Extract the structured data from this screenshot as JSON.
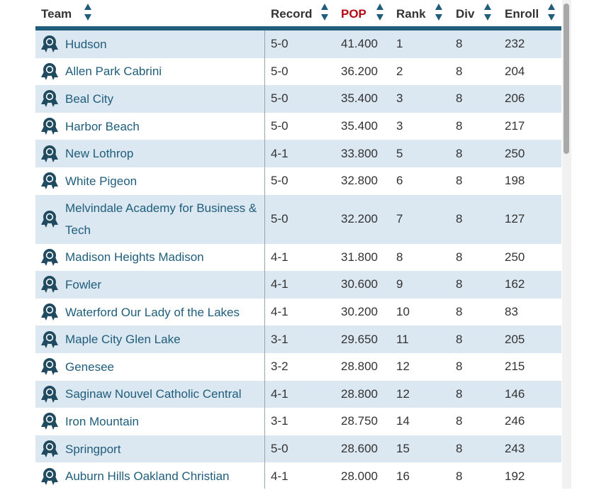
{
  "table": {
    "headers": [
      {
        "key": "team",
        "label": "Team",
        "active": false
      },
      {
        "key": "record",
        "label": "Record",
        "active": false
      },
      {
        "key": "pop",
        "label": "POP",
        "active": true
      },
      {
        "key": "rank",
        "label": "Rank",
        "active": false
      },
      {
        "key": "div",
        "label": "Div",
        "active": false
      },
      {
        "key": "enroll",
        "label": "Enroll",
        "active": false
      }
    ],
    "rows": [
      {
        "team": "Hudson",
        "record": "5-0",
        "pop": "41.400",
        "rank": "1",
        "div": "8",
        "enroll": "232"
      },
      {
        "team": "Allen Park Cabrini",
        "record": "5-0",
        "pop": "36.200",
        "rank": "2",
        "div": "8",
        "enroll": "204"
      },
      {
        "team": "Beal City",
        "record": "5-0",
        "pop": "35.400",
        "rank": "3",
        "div": "8",
        "enroll": "206"
      },
      {
        "team": "Harbor Beach",
        "record": "5-0",
        "pop": "35.400",
        "rank": "3",
        "div": "8",
        "enroll": "217"
      },
      {
        "team": "New Lothrop",
        "record": "4-1",
        "pop": "33.800",
        "rank": "5",
        "div": "8",
        "enroll": "250"
      },
      {
        "team": "White Pigeon",
        "record": "5-0",
        "pop": "32.800",
        "rank": "6",
        "div": "8",
        "enroll": "198"
      },
      {
        "team": "Melvindale Academy for Business & Tech",
        "record": "5-0",
        "pop": "32.200",
        "rank": "7",
        "div": "8",
        "enroll": "127"
      },
      {
        "team": "Madison Heights Madison",
        "record": "4-1",
        "pop": "31.800",
        "rank": "8",
        "div": "8",
        "enroll": "250"
      },
      {
        "team": "Fowler",
        "record": "4-1",
        "pop": "30.600",
        "rank": "9",
        "div": "8",
        "enroll": "162"
      },
      {
        "team": "Waterford Our Lady of the Lakes",
        "record": "4-1",
        "pop": "30.200",
        "rank": "10",
        "div": "8",
        "enroll": "83"
      },
      {
        "team": "Maple City Glen Lake",
        "record": "3-1",
        "pop": "29.650",
        "rank": "11",
        "div": "8",
        "enroll": "205"
      },
      {
        "team": "Genesee",
        "record": "3-2",
        "pop": "28.800",
        "rank": "12",
        "div": "8",
        "enroll": "215"
      },
      {
        "team": "Saginaw Nouvel Catholic Central",
        "record": "4-1",
        "pop": "28.800",
        "rank": "12",
        "div": "8",
        "enroll": "146"
      },
      {
        "team": "Iron Mountain",
        "record": "3-1",
        "pop": "28.750",
        "rank": "14",
        "div": "8",
        "enroll": "246"
      },
      {
        "team": "Springport",
        "record": "5-0",
        "pop": "28.600",
        "rank": "15",
        "div": "8",
        "enroll": "243"
      },
      {
        "team": "Auburn Hills Oakland Christian",
        "record": "4-1",
        "pop": "28.000",
        "rank": "16",
        "div": "8",
        "enroll": "192"
      }
    ]
  },
  "icons": {
    "team_badge": "award-ribbon-icon",
    "sort": "sort-arrows-icon"
  },
  "colors": {
    "header_rule": "#1f5d7a",
    "link": "#1f5d7a",
    "active_header": "#b00b14",
    "row_stripe": "#dbe7f1"
  }
}
